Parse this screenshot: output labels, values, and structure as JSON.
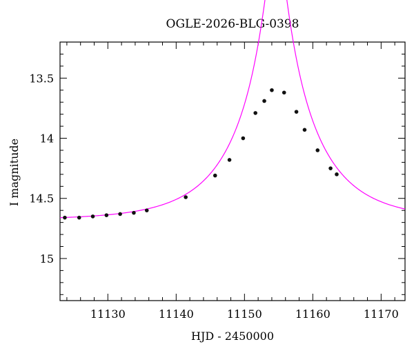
{
  "chart_data": {
    "type": "scatter",
    "title": "OGLE-2026-BLG-0398",
    "xlabel": "HJD - 2450000",
    "ylabel": "I magnitude",
    "xlim": [
      11123.0,
      11173.5
    ],
    "ylim": [
      15.35,
      13.2
    ],
    "y_inverted": true,
    "grid": false,
    "xticks": [
      11130,
      11140,
      11150,
      11160,
      11170
    ],
    "xtick_labels": [
      "11130",
      "11140",
      "11150",
      "11160",
      "11170"
    ],
    "yticks": [
      13.5,
      14,
      14.5,
      15
    ],
    "ytick_labels": [
      "13.5",
      "14",
      "14.5",
      "15"
    ],
    "x_minor_step": 2,
    "y_minor_step": 0.1,
    "model": {
      "name": "",
      "color": "#ff00ff",
      "type": "paczynski",
      "t0": 11154.6,
      "tE": 10.8,
      "u0": 0.115,
      "I_base": 14.68
    },
    "series": [
      {
        "name": "",
        "color": "#111111",
        "points": [
          {
            "x": 11123.7,
            "y": 14.66
          },
          {
            "x": 11125.8,
            "y": 14.66
          },
          {
            "x": 11127.8,
            "y": 14.65
          },
          {
            "x": 11129.8,
            "y": 14.64
          },
          {
            "x": 11131.8,
            "y": 14.63
          },
          {
            "x": 11133.8,
            "y": 14.62
          },
          {
            "x": 11135.7,
            "y": 14.6
          },
          {
            "x": 11141.4,
            "y": 14.49
          },
          {
            "x": 11145.7,
            "y": 14.31
          },
          {
            "x": 11147.8,
            "y": 14.18
          },
          {
            "x": 11149.8,
            "y": 14.0
          },
          {
            "x": 11151.6,
            "y": 13.79
          },
          {
            "x": 11152.9,
            "y": 13.69
          },
          {
            "x": 11154.0,
            "y": 13.6
          },
          {
            "x": 11155.8,
            "y": 13.62
          },
          {
            "x": 11157.6,
            "y": 13.78
          },
          {
            "x": 11158.8,
            "y": 13.93
          },
          {
            "x": 11160.7,
            "y": 14.1
          },
          {
            "x": 11162.6,
            "y": 14.25
          },
          {
            "x": 11163.5,
            "y": 14.3
          }
        ]
      }
    ]
  }
}
